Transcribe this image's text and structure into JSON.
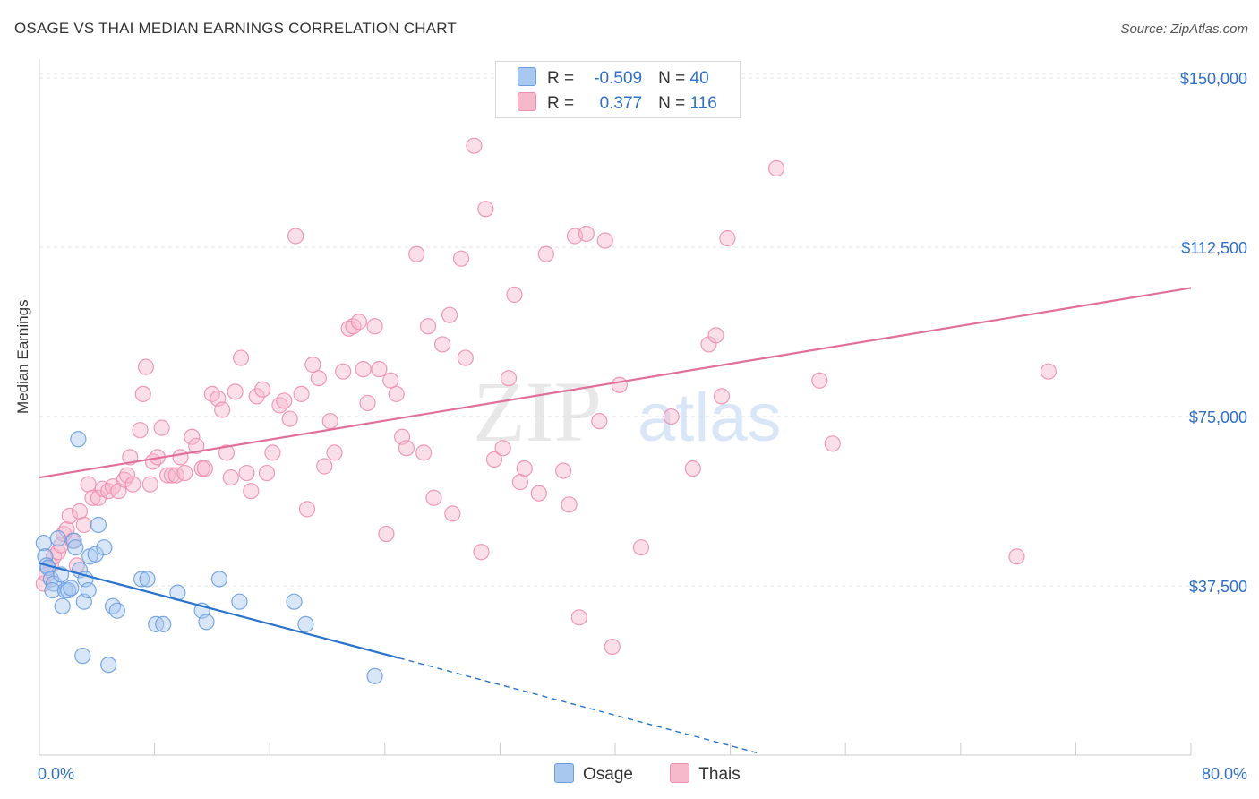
{
  "title": "OSAGE VS THAI MEDIAN EARNINGS CORRELATION CHART",
  "source": "Source: ZipAtlas.com",
  "watermark": {
    "zip": "ZIP",
    "atlas": "atlas"
  },
  "colors": {
    "osage_fill": "#a8c8f0",
    "osage_stroke": "#6a9ee0",
    "osage_line": "#2a73cc",
    "thai_fill": "#f6b8cb",
    "thai_stroke": "#ee8fae",
    "thai_line": "#e0709a",
    "axis_label": "#2f6fc6"
  },
  "legend": {
    "rows": [
      {
        "series": "osage",
        "r_label": "R =",
        "r_value": "-0.509",
        "n_label": "N =",
        "n_value": "40"
      },
      {
        "series": "thai",
        "r_label": "R =",
        "r_value": "0.377",
        "n_label": "N =",
        "n_value": "116"
      }
    ]
  },
  "bottom_legend": [
    {
      "series": "osage",
      "label": "Osage"
    },
    {
      "series": "thai",
      "label": "Thais"
    }
  ],
  "chart_data": {
    "type": "scatter",
    "title": "OSAGE VS THAI MEDIAN EARNINGS CORRELATION CHART",
    "xlabel": "",
    "ylabel": "Median Earnings",
    "xlim": [
      0,
      80
    ],
    "ylim": [
      0,
      153000
    ],
    "x_tick_labels": [
      "0.0%",
      "80.0%"
    ],
    "y_ticks": [
      37500,
      75000,
      112500,
      150000
    ],
    "y_tick_labels": [
      "$37,500",
      "$75,000",
      "$112,500",
      "$150,000"
    ],
    "grid": true,
    "legend_position": "top-center",
    "series": [
      {
        "name": "Osage",
        "color": "#a8c8f0",
        "points": [
          [
            0.3,
            47000
          ],
          [
            0.4,
            44000
          ],
          [
            0.5,
            42000
          ],
          [
            0.6,
            41500
          ],
          [
            0.8,
            39000
          ],
          [
            1.0,
            38000
          ],
          [
            0.9,
            36500
          ],
          [
            1.3,
            48000
          ],
          [
            1.5,
            40000
          ],
          [
            1.6,
            33000
          ],
          [
            1.8,
            36500
          ],
          [
            2.0,
            36500
          ],
          [
            2.2,
            37000
          ],
          [
            2.4,
            47500
          ],
          [
            2.5,
            46000
          ],
          [
            2.7,
            70000
          ],
          [
            2.8,
            41000
          ],
          [
            3.0,
            22000
          ],
          [
            3.1,
            34000
          ],
          [
            3.2,
            39000
          ],
          [
            3.4,
            36500
          ],
          [
            3.5,
            44000
          ],
          [
            3.9,
            44500
          ],
          [
            4.1,
            51000
          ],
          [
            4.5,
            46000
          ],
          [
            4.8,
            20000
          ],
          [
            5.1,
            33000
          ],
          [
            5.4,
            32000
          ],
          [
            7.1,
            39000
          ],
          [
            7.5,
            39000
          ],
          [
            8.1,
            29000
          ],
          [
            8.6,
            29000
          ],
          [
            9.6,
            36000
          ],
          [
            11.3,
            32000
          ],
          [
            11.6,
            29500
          ],
          [
            12.5,
            39000
          ],
          [
            13.9,
            34000
          ],
          [
            17.7,
            34000
          ],
          [
            18.5,
            29000
          ],
          [
            23.3,
            17500
          ]
        ]
      },
      {
        "name": "Thais",
        "color": "#f6b8cb",
        "points": [
          [
            0.3,
            38000
          ],
          [
            0.5,
            40000
          ],
          [
            0.8,
            42000
          ],
          [
            1.0,
            44000
          ],
          [
            1.3,
            45000
          ],
          [
            1.5,
            46500
          ],
          [
            1.7,
            49000
          ],
          [
            1.9,
            50000
          ],
          [
            2.1,
            53000
          ],
          [
            2.3,
            47500
          ],
          [
            2.6,
            42000
          ],
          [
            2.8,
            54000
          ],
          [
            3.1,
            51000
          ],
          [
            3.4,
            60000
          ],
          [
            3.7,
            57000
          ],
          [
            4.1,
            57000
          ],
          [
            4.4,
            59000
          ],
          [
            4.8,
            58500
          ],
          [
            5.1,
            59500
          ],
          [
            5.5,
            58500
          ],
          [
            5.9,
            61000
          ],
          [
            6.1,
            62000
          ],
          [
            6.3,
            66000
          ],
          [
            6.5,
            60000
          ],
          [
            7.0,
            72000
          ],
          [
            7.2,
            80000
          ],
          [
            7.4,
            86000
          ],
          [
            7.7,
            60000
          ],
          [
            7.9,
            65000
          ],
          [
            8.2,
            66000
          ],
          [
            8.5,
            72500
          ],
          [
            8.9,
            62000
          ],
          [
            9.2,
            62000
          ],
          [
            9.5,
            62000
          ],
          [
            9.8,
            66000
          ],
          [
            10.1,
            62500
          ],
          [
            10.6,
            70500
          ],
          [
            10.9,
            68500
          ],
          [
            11.3,
            63500
          ],
          [
            11.5,
            63500
          ],
          [
            12.0,
            80000
          ],
          [
            12.4,
            79000
          ],
          [
            12.7,
            76500
          ],
          [
            13.0,
            67000
          ],
          [
            13.3,
            61500
          ],
          [
            13.6,
            80500
          ],
          [
            14.0,
            88000
          ],
          [
            14.4,
            62500
          ],
          [
            14.7,
            58500
          ],
          [
            15.1,
            79500
          ],
          [
            15.5,
            81000
          ],
          [
            15.8,
            62500
          ],
          [
            16.2,
            67000
          ],
          [
            16.7,
            77500
          ],
          [
            17.0,
            78500
          ],
          [
            17.4,
            74500
          ],
          [
            17.8,
            115000
          ],
          [
            18.2,
            80000
          ],
          [
            18.6,
            54500
          ],
          [
            19.0,
            86500
          ],
          [
            19.4,
            83500
          ],
          [
            19.8,
            64000
          ],
          [
            20.2,
            74000
          ],
          [
            20.5,
            67000
          ],
          [
            21.1,
            85000
          ],
          [
            21.5,
            94500
          ],
          [
            21.8,
            95000
          ],
          [
            22.2,
            96000
          ],
          [
            22.5,
            85500
          ],
          [
            22.8,
            78000
          ],
          [
            23.3,
            95000
          ],
          [
            23.6,
            85500
          ],
          [
            24.1,
            49000
          ],
          [
            24.4,
            83000
          ],
          [
            24.8,
            80000
          ],
          [
            25.2,
            70500
          ],
          [
            25.5,
            68000
          ],
          [
            26.2,
            111000
          ],
          [
            26.7,
            67000
          ],
          [
            27.0,
            95000
          ],
          [
            27.4,
            57000
          ],
          [
            28.0,
            91000
          ],
          [
            28.5,
            97500
          ],
          [
            28.7,
            53500
          ],
          [
            29.3,
            110000
          ],
          [
            29.6,
            88000
          ],
          [
            30.2,
            135000
          ],
          [
            30.7,
            45000
          ],
          [
            31.0,
            121000
          ],
          [
            31.6,
            65500
          ],
          [
            32.2,
            68000
          ],
          [
            32.6,
            83500
          ],
          [
            33.0,
            102000
          ],
          [
            33.4,
            60500
          ],
          [
            33.7,
            63500
          ],
          [
            34.7,
            58000
          ],
          [
            35.2,
            111000
          ],
          [
            36.4,
            63000
          ],
          [
            36.8,
            55500
          ],
          [
            37.2,
            115000
          ],
          [
            37.5,
            30500
          ],
          [
            38.0,
            115500
          ],
          [
            38.9,
            74000
          ],
          [
            39.3,
            114000
          ],
          [
            39.8,
            24000
          ],
          [
            40.3,
            82000
          ],
          [
            41.8,
            46000
          ],
          [
            43.9,
            75000
          ],
          [
            45.4,
            63500
          ],
          [
            46.5,
            91000
          ],
          [
            47.0,
            93000
          ],
          [
            47.4,
            79500
          ],
          [
            47.8,
            114500
          ],
          [
            51.2,
            130000
          ],
          [
            54.2,
            83000
          ],
          [
            55.1,
            69000
          ],
          [
            67.9,
            44000
          ],
          [
            70.1,
            85000
          ]
        ]
      }
    ],
    "trend_lines": [
      {
        "series": "Osage",
        "solid": [
          [
            0,
            42500
          ],
          [
            25,
            21500
          ]
        ],
        "dashed": [
          [
            25,
            21500
          ],
          [
            50,
            400
          ]
        ]
      },
      {
        "series": "Thais",
        "solid": [
          [
            0,
            61500
          ],
          [
            80,
            103500
          ]
        ]
      }
    ]
  }
}
